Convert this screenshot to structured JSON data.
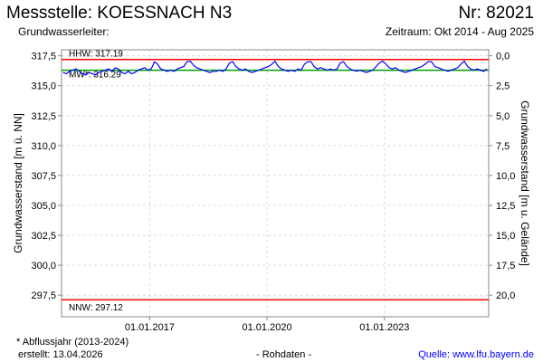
{
  "header": {
    "title": "Messstelle: KOESSNACH N3",
    "number": "Nr: 82021",
    "subtitle_left": "Grundwasserleiter:",
    "subtitle_right": "Zeitraum: Okt 2014 - Aug 2025"
  },
  "footer": {
    "note": "* Abflussjahr (2013-2024)",
    "created": "erstellt:  13.04.2026",
    "rawdata": "- Rohdaten -",
    "source": "Quelle: www.lfu.bayern.de"
  },
  "chart_data": {
    "type": "line",
    "ylabel": "Grundwasserstand [m ü. NN]",
    "y2label": "Grundwasserstand [m u. Gelände]",
    "ylim": [
      295.7,
      318.0
    ],
    "xlim": [
      "2014-10-01",
      "2025-08-31"
    ],
    "yticks": [
      "317,5",
      "315,0",
      "312,5",
      "310,0",
      "307,5",
      "305,0",
      "302,5",
      "300,0",
      "297,5"
    ],
    "y2ticks": [
      "0,0",
      "2,5",
      "5,0",
      "7,5",
      "10,0",
      "12,5",
      "15,0",
      "17,5",
      "20,0"
    ],
    "xticks": [
      "01.01.2017",
      "01.01.2020",
      "01.01.2023"
    ],
    "grid": true,
    "reference_lines": [
      {
        "label": "HHW: 317.19",
        "value": 317.19,
        "color": "#ff0000"
      },
      {
        "label": "MW*: 316.29",
        "value": 316.29,
        "color": "#00a000"
      },
      {
        "label": "NNW: 297.12",
        "value": 297.12,
        "color": "#ff0000"
      }
    ],
    "series": [
      {
        "color": "#0000ff",
        "start": "2014-10",
        "interval": "monthly",
        "values": [
          316.1,
          316.0,
          316.2,
          316.3,
          316.4,
          316.2,
          316.0,
          315.9,
          316.1,
          316.0,
          315.9,
          316.1,
          316.2,
          316.3,
          316.4,
          316.2,
          316.5,
          316.4,
          316.1,
          316.0,
          316.2,
          316.0,
          316.1,
          316.3,
          316.4,
          316.5,
          316.3,
          316.4,
          317.0,
          316.8,
          316.4,
          316.3,
          316.2,
          316.3,
          316.2,
          316.4,
          316.5,
          316.6,
          317.0,
          317.05,
          316.7,
          316.5,
          316.4,
          316.3,
          316.2,
          316.1,
          316.2,
          316.2,
          316.3,
          316.2,
          316.4,
          316.9,
          317.0,
          316.6,
          316.4,
          316.3,
          316.4,
          316.2,
          316.1,
          316.2,
          316.3,
          316.4,
          316.5,
          316.6,
          316.8,
          317.05,
          316.6,
          316.4,
          316.3,
          316.2,
          316.3,
          316.2,
          316.4,
          316.3,
          316.8,
          317.0,
          317.0,
          316.6,
          316.4,
          316.5,
          316.4,
          316.3,
          316.4,
          316.3,
          316.4,
          316.9,
          317.0,
          316.6,
          316.4,
          316.3,
          316.2,
          316.3,
          316.2,
          316.1,
          316.2,
          316.3,
          316.6,
          316.9,
          317.05,
          316.8,
          316.5,
          316.4,
          316.5,
          316.3,
          316.2,
          316.1,
          316.2,
          316.3,
          316.4,
          316.5,
          316.6,
          316.8,
          317.0,
          317.0,
          316.6,
          316.5,
          316.4,
          316.3,
          316.2,
          316.3,
          316.4,
          316.5,
          316.8,
          317.05,
          316.6,
          316.4,
          316.3,
          316.4,
          316.3,
          316.2,
          316.4
        ]
      }
    ]
  }
}
